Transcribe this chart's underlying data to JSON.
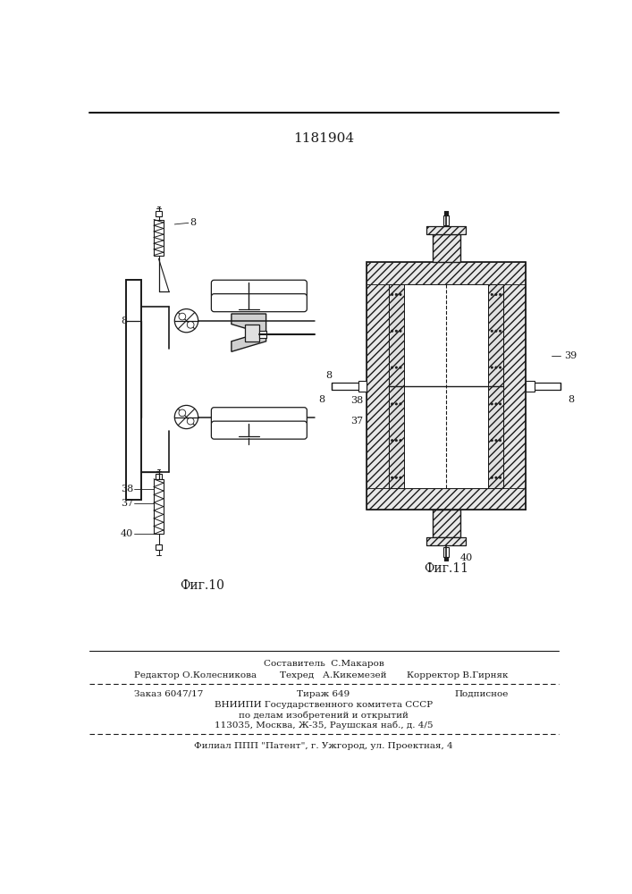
{
  "patent_number": "1181904",
  "bg_color": "#ffffff",
  "line_color": "#1a1a1a",
  "fig_width": 7.07,
  "fig_height": 10.0,
  "footer_line1_center": "Составитель  С.Макаров",
  "footer_line1_left": "Редактор О.Колесникова",
  "footer_line2_center": "Техред   А.Кикемезей",
  "footer_line2_right": "Корректор В.Гирняк",
  "footer_line3_left": "Заказ 6047/17",
  "footer_line3_center": "Тираж 649",
  "footer_line3_right": "Подписное",
  "footer_line4": "ВНИИПИ Государственного комитета СССР",
  "footer_line5": "по делам изобретений и открытий",
  "footer_line6": "113035, Москва, Ж-35, Раушская наб., д. 4/5",
  "footer_line7": "Филиал ППП \"Патент\", г. Ужгород, ул. Проектная, 4"
}
